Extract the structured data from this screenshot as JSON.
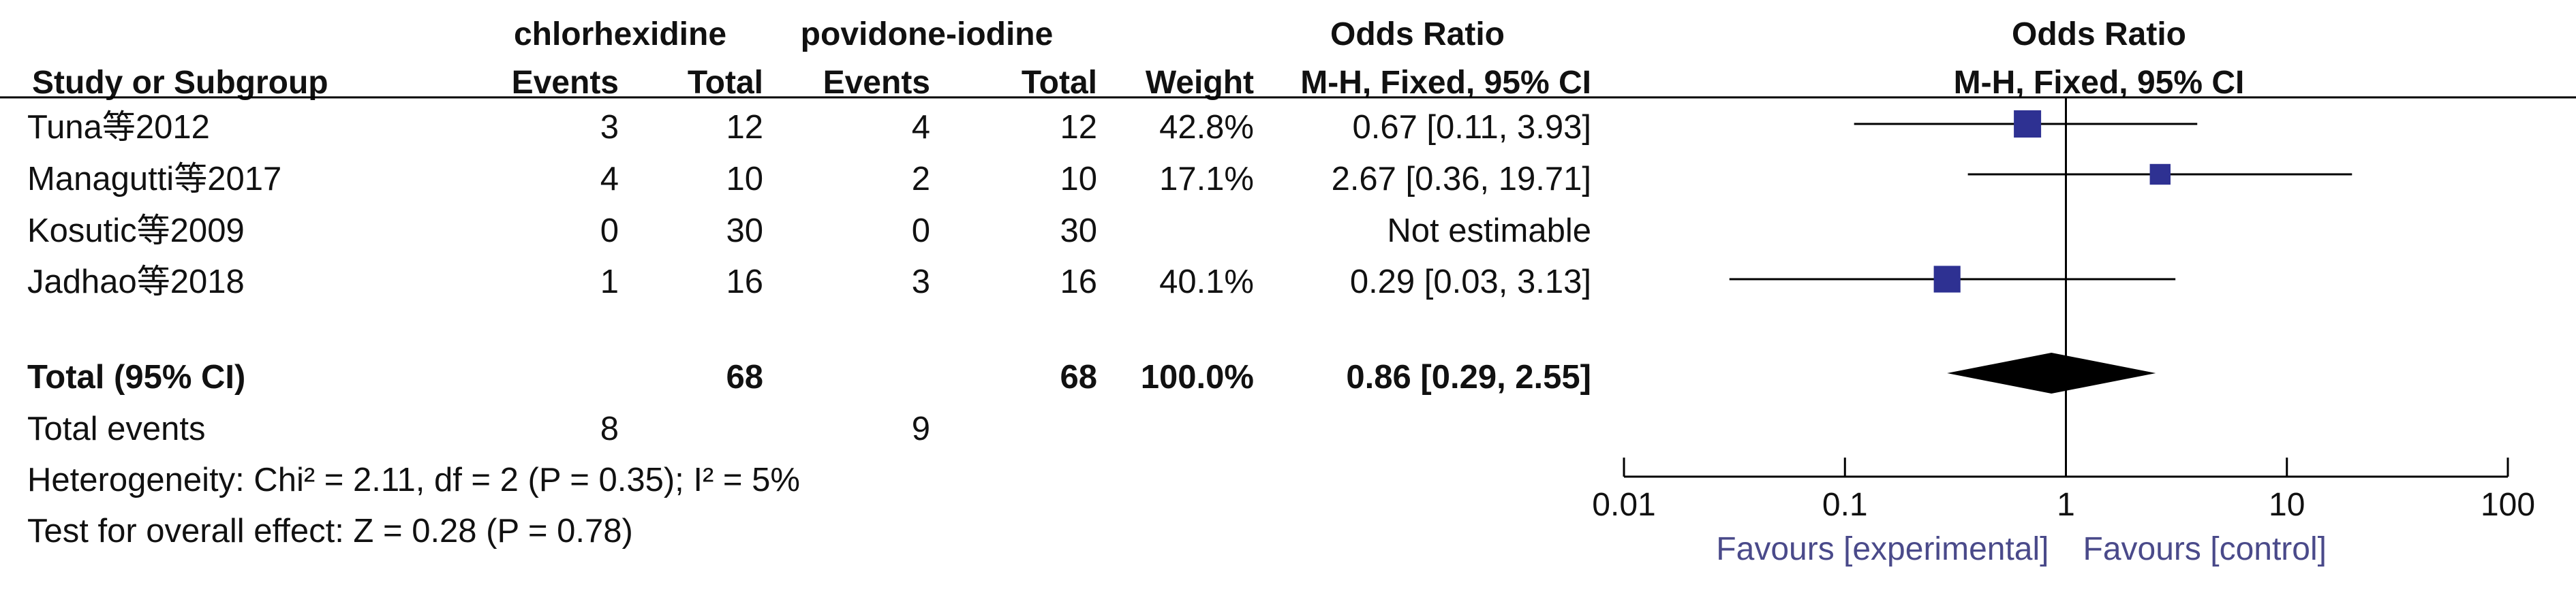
{
  "headers": {
    "group1": "chlorhexidine",
    "group2": "povidone-iodine",
    "or_title": "Odds Ratio",
    "study": "Study or Subgroup",
    "events": "Events",
    "total": "Total",
    "weight": "Weight",
    "method": "M-H, Fixed, 95% CI",
    "plot_title": "Odds Ratio",
    "plot_method": "M-H, Fixed, 95% CI"
  },
  "studies": [
    {
      "name": "Tuna等2012",
      "e1": "3",
      "t1": "12",
      "e2": "4",
      "t2": "12",
      "weight": "42.8%",
      "ci": "0.67 [0.11, 3.93]"
    },
    {
      "name": "Managutti等2017",
      "e1": "4",
      "t1": "10",
      "e2": "2",
      "t2": "10",
      "weight": "17.1%",
      "ci": "2.67 [0.36, 19.71]"
    },
    {
      "name": "Kosutic等2009",
      "e1": "0",
      "t1": "30",
      "e2": "0",
      "t2": "30",
      "weight": "",
      "ci": "Not estimable"
    },
    {
      "name": "Jadhao等2018",
      "e1": "1",
      "t1": "16",
      "e2": "3",
      "t2": "16",
      "weight": "40.1%",
      "ci": "0.29 [0.03, 3.13]"
    }
  ],
  "total_row": {
    "label": "Total (95% CI)",
    "t1": "68",
    "t2": "68",
    "weight": "100.0%",
    "ci": "0.86 [0.29, 2.55]"
  },
  "total_events": {
    "label": "Total events",
    "e1": "8",
    "e2": "9"
  },
  "heterogeneity": "Heterogeneity: Chi² = 2.11, df = 2 (P = 0.35); I² = 5%",
  "overall_effect": "Test for overall effect: Z = 0.28 (P = 0.78)",
  "chart_data": {
    "type": "scatter",
    "scale": "log",
    "xlim": [
      0.01,
      100
    ],
    "ticks": [
      0.01,
      0.1,
      1,
      10,
      100
    ],
    "tick_labels": [
      "0.01",
      "0.1",
      "1",
      "10",
      "100"
    ],
    "favours_left": "Favours [experimental]",
    "favours_right": "Favours [control]",
    "points": [
      {
        "or": 0.67,
        "lo": 0.11,
        "hi": 3.93,
        "weight": 42.8
      },
      {
        "or": 2.67,
        "lo": 0.36,
        "hi": 19.71,
        "weight": 17.1
      },
      null,
      {
        "or": 0.29,
        "lo": 0.03,
        "hi": 3.13,
        "weight": 40.1
      }
    ],
    "pooled": {
      "or": 0.86,
      "lo": 0.29,
      "hi": 2.55
    },
    "colors": {
      "marker": "#2e3192",
      "line": "#000000",
      "favours": "#4a4a8a"
    }
  }
}
